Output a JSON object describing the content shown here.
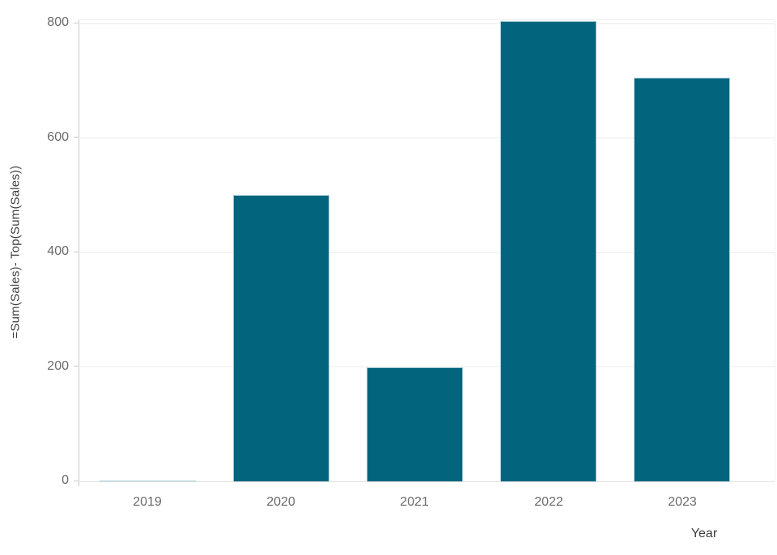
{
  "chart_data": {
    "type": "bar",
    "title": "",
    "categories": [
      "2019",
      "2020",
      "2021",
      "2022",
      "2023"
    ],
    "values": [
      1,
      500,
      200,
      805,
      705
    ],
    "xlabel": "Year",
    "ylabel": "=Sum(Sales)- Top(Sum(Sales))",
    "ylim": [
      0,
      806
    ],
    "yticks": [
      0,
      200,
      400,
      600,
      800
    ],
    "grid": "horizontal",
    "legend": "none",
    "colors": {
      "bar_fill": "#03647e",
      "bar_stroke": "#a9cdd8",
      "axis_line": "#c9c9c9",
      "gridline": "#ececec",
      "tick_label": "#6a6a6a",
      "axis_title": "#3d3d3d",
      "background": "#ffffff"
    }
  }
}
